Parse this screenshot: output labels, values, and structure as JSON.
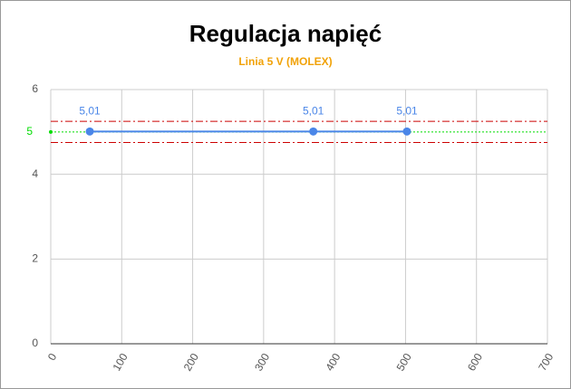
{
  "chart_data": {
    "type": "line",
    "title": "Regulacja napięć",
    "subtitle": "Linia 5 V (MOLEX)",
    "x": [
      55,
      370,
      502
    ],
    "series": [
      {
        "color": "#4a86e8",
        "values": [
          5.01,
          5.01,
          5.01
        ],
        "value_labels": [
          "5,01",
          "5,01",
          "5,01"
        ]
      }
    ],
    "xlim": [
      0,
      700
    ],
    "xticks": [
      0,
      100,
      200,
      300,
      400,
      500,
      600,
      700
    ],
    "ylim": [
      0,
      6
    ],
    "yticks": [
      0,
      2,
      4,
      6
    ],
    "grid": true,
    "reference_lines": [
      {
        "value": 5.25,
        "color": "#cc0000",
        "style": "dash-dot",
        "labeled": false
      },
      {
        "value": 4.75,
        "color": "#cc0000",
        "style": "dash-dot",
        "labeled": false
      },
      {
        "value": 5,
        "color": "#00dd00",
        "style": "dotted",
        "labeled": true
      }
    ]
  }
}
